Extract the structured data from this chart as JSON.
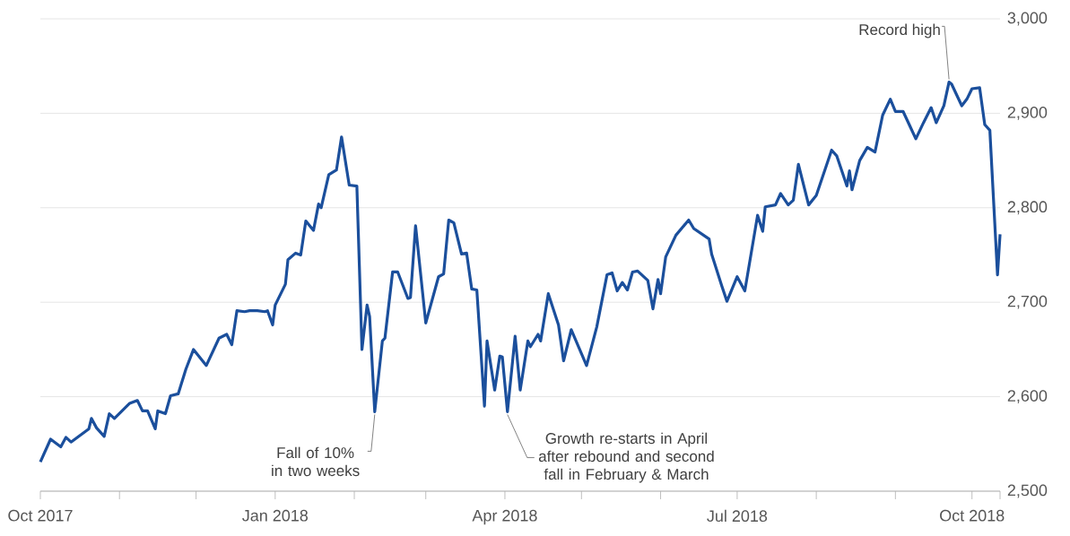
{
  "chart_data": {
    "type": "line",
    "x": [
      "2017-10-01",
      "2017-10-05",
      "2017-10-09",
      "2017-10-11",
      "2017-10-13",
      "2017-10-20",
      "2017-10-21",
      "2017-10-23",
      "2017-10-26",
      "2017-10-28",
      "2017-10-30",
      "2017-11-05",
      "2017-11-08",
      "2017-11-10",
      "2017-11-12",
      "2017-11-15",
      "2017-11-16",
      "2017-11-19",
      "2017-11-21",
      "2017-11-24",
      "2017-11-27",
      "2017-11-30",
      "2017-12-05",
      "2017-12-10",
      "2017-12-13",
      "2017-12-15",
      "2017-12-17",
      "2017-12-20",
      "2017-12-22",
      "2017-12-25",
      "2017-12-28",
      "2017-12-29",
      "2017-12-31",
      "2018-01-01",
      "2018-01-05",
      "2018-01-06",
      "2018-01-09",
      "2018-01-11",
      "2018-01-13",
      "2018-01-16",
      "2018-01-18",
      "2018-01-19",
      "2018-01-22",
      "2018-01-25",
      "2018-01-27",
      "2018-01-30",
      "2018-02-02",
      "2018-02-04",
      "2018-02-06",
      "2018-02-07",
      "2018-02-09",
      "2018-02-12",
      "2018-02-13",
      "2018-02-16",
      "2018-02-18",
      "2018-02-22",
      "2018-02-23",
      "2018-02-25",
      "2018-03-01",
      "2018-03-06",
      "2018-03-08",
      "2018-03-10",
      "2018-03-12",
      "2018-03-15",
      "2018-03-17",
      "2018-03-19",
      "2018-03-21",
      "2018-03-24",
      "2018-03-25",
      "2018-03-28",
      "2018-03-30",
      "2018-03-31",
      "2018-04-02",
      "2018-04-05",
      "2018-04-07",
      "2018-04-10",
      "2018-04-11",
      "2018-04-14",
      "2018-04-15",
      "2018-04-18",
      "2018-04-22",
      "2018-04-24",
      "2018-04-27",
      "2018-04-30",
      "2018-05-03",
      "2018-05-07",
      "2018-05-11",
      "2018-05-13",
      "2018-05-15",
      "2018-05-17",
      "2018-05-19",
      "2018-05-21",
      "2018-05-23",
      "2018-05-27",
      "2018-05-29",
      "2018-05-31",
      "2018-06-01",
      "2018-06-03",
      "2018-06-07",
      "2018-06-12",
      "2018-06-14",
      "2018-06-20",
      "2018-06-21",
      "2018-06-25",
      "2018-06-27",
      "2018-07-01",
      "2018-07-04",
      "2018-07-09",
      "2018-07-11",
      "2018-07-12",
      "2018-07-16",
      "2018-07-18",
      "2018-07-21",
      "2018-07-23",
      "2018-07-25",
      "2018-07-29",
      "2018-08-01",
      "2018-08-07",
      "2018-08-09",
      "2018-08-13",
      "2018-08-14",
      "2018-08-15",
      "2018-08-18",
      "2018-08-21",
      "2018-08-24",
      "2018-08-27",
      "2018-08-30",
      "2018-09-01",
      "2018-09-04",
      "2018-09-09",
      "2018-09-12",
      "2018-09-15",
      "2018-09-17",
      "2018-09-20",
      "2018-09-22",
      "2018-09-23",
      "2018-09-27",
      "2018-09-29",
      "2018-10-01",
      "2018-10-04",
      "2018-10-06",
      "2018-10-08",
      "2018-10-11",
      "2018-10-12"
    ],
    "values": [
      2531,
      2555,
      2547,
      2557,
      2552,
      2566,
      2577,
      2567,
      2558,
      2582,
      2577,
      2593,
      2596,
      2585,
      2585,
      2566,
      2585,
      2582,
      2601,
      2603,
      2629,
      2650,
      2633,
      2662,
      2666,
      2655,
      2691,
      2690,
      2691,
      2691,
      2690,
      2691,
      2676,
      2697,
      2719,
      2745,
      2752,
      2750,
      2786,
      2776,
      2804,
      2800,
      2835,
      2840,
      2875,
      2824,
      2823,
      2650,
      2697,
      2685,
      2584,
      2659,
      2662,
      2732,
      2732,
      2704,
      2705,
      2781,
      2678,
      2727,
      2730,
      2787,
      2784,
      2751,
      2752,
      2714,
      2713,
      2590,
      2659,
      2607,
      2643,
      2642,
      2584,
      2664,
      2607,
      2659,
      2653,
      2666,
      2659,
      2709,
      2676,
      2638,
      2671,
      2652,
      2633,
      2674,
      2729,
      2731,
      2712,
      2721,
      2713,
      2732,
      2733,
      2723,
      2693,
      2724,
      2709,
      2748,
      2771,
      2787,
      2778,
      2767,
      2751,
      2717,
      2701,
      2727,
      2712,
      2792,
      2775,
      2801,
      2803,
      2815,
      2803,
      2808,
      2846,
      2803,
      2813,
      2861,
      2855,
      2823,
      2839,
      2819,
      2850,
      2864,
      2859,
      2898,
      2915,
      2902,
      2902,
      2873,
      2890,
      2906,
      2890,
      2908,
      2933,
      2931,
      2908,
      2915,
      2926,
      2927,
      2888,
      2882,
      2729,
      2772
    ],
    "color": "#1b4f9c",
    "xlim": [
      "2017-10-01",
      "2018-10-12"
    ],
    "xticks": [
      {
        "value": "2017-10-01",
        "label": "Oct 2017"
      },
      {
        "value": "2017-11-01",
        "label": null
      },
      {
        "value": "2017-12-01",
        "label": null
      },
      {
        "value": "2018-01-01",
        "label": "Jan 2018"
      },
      {
        "value": "2018-02-01",
        "label": null
      },
      {
        "value": "2018-03-01",
        "label": null
      },
      {
        "value": "2018-04-01",
        "label": "Apr 2018"
      },
      {
        "value": "2018-05-01",
        "label": null
      },
      {
        "value": "2018-06-01",
        "label": null
      },
      {
        "value": "2018-07-01",
        "label": "Jul 2018"
      },
      {
        "value": "2018-08-01",
        "label": null
      },
      {
        "value": "2018-09-01",
        "label": null
      },
      {
        "value": "2018-10-01",
        "label": "Oct 2018"
      },
      {
        "value": "2018-10-12",
        "label": null
      }
    ],
    "ylim": [
      2500,
      3000
    ],
    "yticks": [
      {
        "value": 2500,
        "label": "2,500"
      },
      {
        "value": 2600,
        "label": "2,600"
      },
      {
        "value": 2700,
        "label": "2,700"
      },
      {
        "value": 2800,
        "label": "2,800"
      },
      {
        "value": 2900,
        "label": "2,900"
      },
      {
        "value": 3000,
        "label": "3,000"
      }
    ],
    "grid": "y",
    "line_style": "solid",
    "marker": "none",
    "annotations": [
      {
        "text": "Record high",
        "x": "2018-09-22",
        "y": 2933
      },
      {
        "text": "Fall of 10% in two weeks",
        "x": "2018-02-09",
        "y": 2584
      },
      {
        "text": "Growth re-starts in April after rebound and second fall in February & March",
        "x": "2018-04-02",
        "y": 2584
      }
    ]
  }
}
